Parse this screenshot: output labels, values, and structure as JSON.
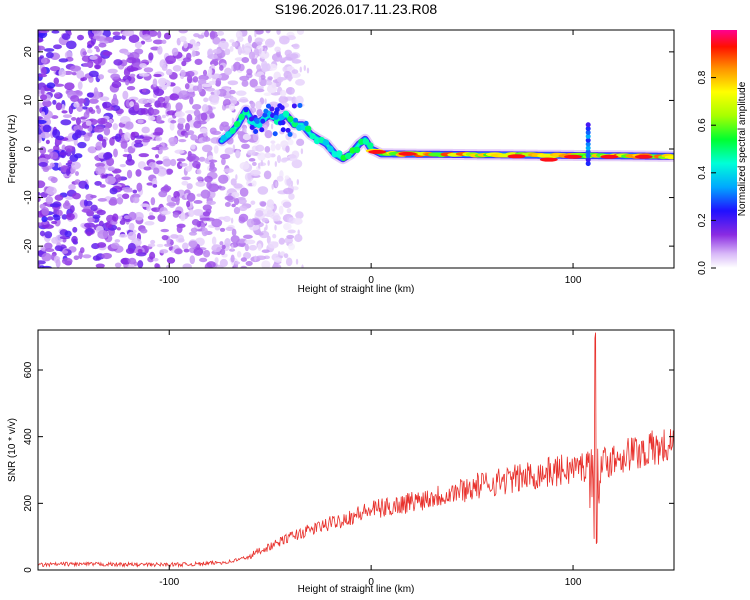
{
  "figure": {
    "title": "S196.2026.017.11.23.R08"
  },
  "chart_data": [
    {
      "type": "heatmap",
      "name": "spectrogram",
      "xlabel": "Height of straight line (km)",
      "ylabel": "Frequency (Hz)",
      "xlim": [
        -165,
        150
      ],
      "ylim": [
        -24.5,
        24.5
      ],
      "xticks": [
        -100,
        0,
        100
      ],
      "yticks": [
        -20,
        -10,
        0,
        10,
        20
      ],
      "colorbar": {
        "label": "Normalized spectral amplitude",
        "range": [
          0,
          1
        ],
        "ticks": [
          0.0,
          0.2,
          0.4,
          0.6,
          0.8
        ]
      },
      "ridge": {
        "description_points": [
          {
            "x": -73,
            "y": 2
          },
          {
            "x": -70,
            "y": 3
          },
          {
            "x": -66,
            "y": 5
          },
          {
            "x": -62,
            "y": 8
          },
          {
            "x": -58,
            "y": 5
          },
          {
            "x": -54,
            "y": 6
          },
          {
            "x": -50,
            "y": 7
          },
          {
            "x": -46,
            "y": 6
          },
          {
            "x": -42,
            "y": 7
          },
          {
            "x": -38,
            "y": 5
          },
          {
            "x": -34,
            "y": 5
          },
          {
            "x": -30,
            "y": 3
          },
          {
            "x": -26,
            "y": 2
          },
          {
            "x": -22,
            "y": 1
          },
          {
            "x": -18,
            "y": -1
          },
          {
            "x": -14,
            "y": -2
          },
          {
            "x": -10,
            "y": -1
          },
          {
            "x": -6,
            "y": 1
          },
          {
            "x": -3,
            "y": 2
          },
          {
            "x": 0,
            "y": 0
          },
          {
            "x": 5,
            "y": -1
          },
          {
            "x": 150,
            "y": -1.5
          }
        ]
      }
    },
    {
      "type": "line",
      "name": "snr",
      "xlabel": "Height of straight line (km)",
      "ylabel": "SNR (10 * v/v)",
      "xlim": [
        -165,
        150
      ],
      "ylim": [
        0,
        720
      ],
      "xticks": [
        -100,
        0,
        100
      ],
      "yticks": [
        0,
        200,
        400,
        600
      ],
      "color": "#e8312c",
      "series": [
        {
          "x": [
            -165,
            -150,
            -130,
            -110,
            -90,
            -80,
            -70,
            -60,
            -55,
            -50,
            -45,
            -40,
            -35,
            -30,
            -25,
            -20,
            -15,
            -10,
            -5,
            0,
            5,
            10,
            15,
            20,
            25,
            30,
            35,
            40,
            45,
            50,
            55,
            60,
            65,
            70,
            75,
            80,
            85,
            90,
            95,
            100,
            105,
            108,
            110,
            111,
            112,
            115,
            120,
            125,
            130,
            135,
            140,
            145,
            150
          ],
          "y": [
            15,
            18,
            17,
            16,
            17,
            20,
            25,
            40,
            60,
            70,
            85,
            100,
            110,
            120,
            130,
            140,
            150,
            160,
            170,
            180,
            185,
            190,
            198,
            205,
            212,
            220,
            225,
            232,
            240,
            248,
            255,
            262,
            268,
            272,
            278,
            284,
            290,
            295,
            300,
            305,
            310,
            315,
            300,
            320,
            310,
            318,
            335,
            345,
            352,
            358,
            363,
            368,
            372
          ]
        }
      ],
      "spike": {
        "x_center": 111,
        "max": 715,
        "min": 65
      }
    }
  ]
}
